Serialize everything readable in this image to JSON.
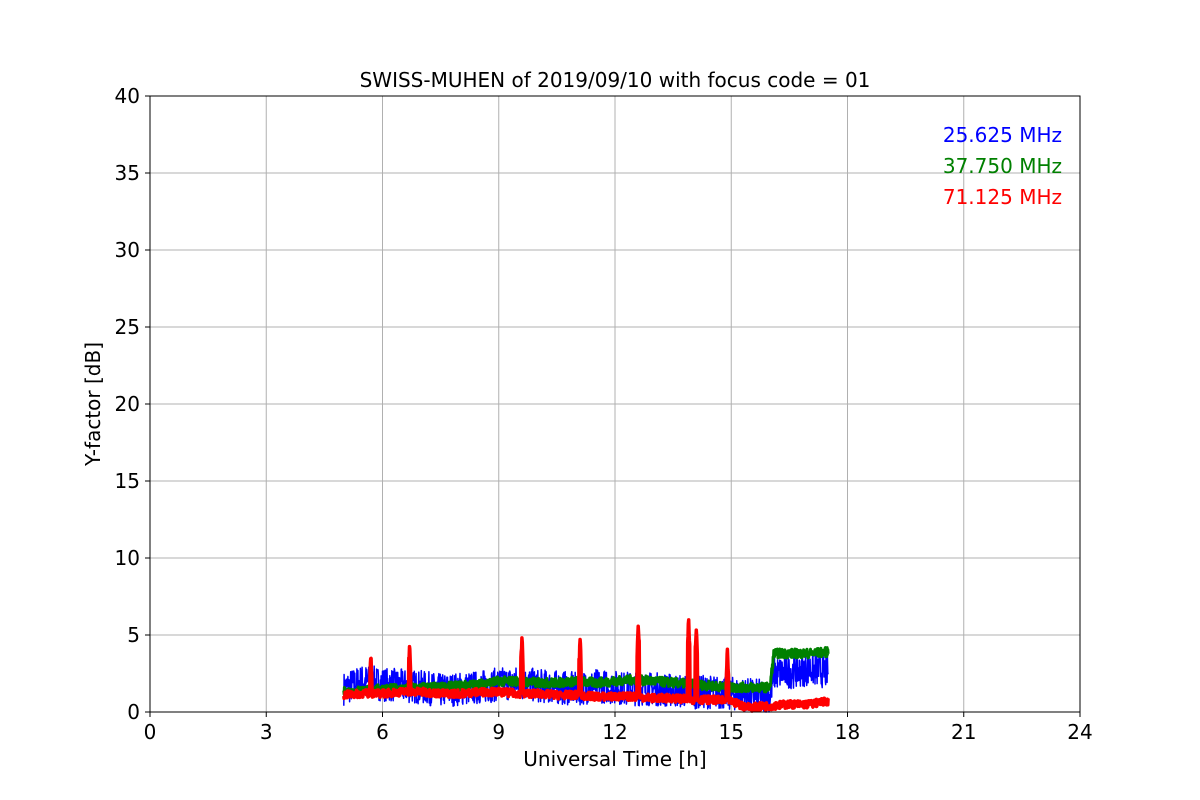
{
  "chart_data": {
    "type": "line",
    "title": "SWISS-MUHEN of 2019/09/10 with focus code = 01",
    "xlabel": "Universal Time [h]",
    "ylabel": "Y-factor [dB]",
    "xlim": [
      0,
      24
    ],
    "ylim": [
      0,
      40
    ],
    "xticks": [
      "0",
      "3",
      "6",
      "9",
      "12",
      "15",
      "18",
      "21",
      "24"
    ],
    "yticks": [
      "0",
      "5",
      "10",
      "15",
      "20",
      "25",
      "30",
      "35",
      "40"
    ],
    "grid": true,
    "legend_position": "top-right",
    "series": [
      {
        "name": "25.625 MHz",
        "color": "#0000ff",
        "x": [
          5.0,
          5.5,
          6.0,
          6.5,
          7.0,
          7.5,
          8.0,
          8.5,
          9.0,
          9.5,
          10.0,
          10.5,
          11.0,
          11.5,
          12.0,
          12.5,
          13.0,
          13.5,
          14.0,
          14.5,
          15.0,
          15.5,
          16.0,
          16.1,
          16.5,
          17.0,
          17.5
        ],
        "y": [
          1.5,
          2.0,
          1.8,
          1.7,
          1.6,
          1.4,
          1.5,
          1.6,
          1.8,
          1.9,
          1.7,
          1.6,
          1.5,
          1.7,
          1.6,
          1.5,
          1.5,
          1.4,
          1.3,
          1.3,
          1.2,
          1.1,
          1.0,
          2.5,
          2.6,
          2.8,
          2.6
        ],
        "spread": 1.1
      },
      {
        "name": "37.750 MHz",
        "color": "#008000",
        "x": [
          5.0,
          5.5,
          6.0,
          6.5,
          7.0,
          7.5,
          8.0,
          8.5,
          9.0,
          9.5,
          10.0,
          10.5,
          11.0,
          11.5,
          12.0,
          12.5,
          13.0,
          13.5,
          14.0,
          14.5,
          15.0,
          15.5,
          16.0,
          16.1,
          16.5,
          17.0,
          17.5
        ],
        "y": [
          1.3,
          1.4,
          1.5,
          1.5,
          1.6,
          1.6,
          1.7,
          1.8,
          2.0,
          2.0,
          1.9,
          1.9,
          2.0,
          1.9,
          2.0,
          2.1,
          2.0,
          1.9,
          1.8,
          1.7,
          1.6,
          1.6,
          1.6,
          3.8,
          3.8,
          3.8,
          3.9
        ],
        "spread": 0.3
      },
      {
        "name": "71.125 MHz",
        "color": "#ff0000",
        "x": [
          5.0,
          5.5,
          6.0,
          6.5,
          7.0,
          7.5,
          8.0,
          8.5,
          9.0,
          9.5,
          10.0,
          10.5,
          11.0,
          11.5,
          12.0,
          12.5,
          13.0,
          13.5,
          14.0,
          14.5,
          15.0,
          15.3,
          15.5,
          16.0,
          16.5,
          17.0,
          17.5
        ],
        "y": [
          1.1,
          1.2,
          1.2,
          1.3,
          1.3,
          1.2,
          1.2,
          1.3,
          1.3,
          1.2,
          1.2,
          1.1,
          1.1,
          1.0,
          1.0,
          1.0,
          0.9,
          0.9,
          0.8,
          0.8,
          0.7,
          0.4,
          0.3,
          0.4,
          0.5,
          0.5,
          0.7
        ],
        "spread": 0.25,
        "spikes": [
          [
            5.7,
            3.7
          ],
          [
            6.7,
            4.4
          ],
          [
            9.6,
            4.9
          ],
          [
            11.1,
            4.8
          ],
          [
            12.6,
            5.7
          ],
          [
            13.9,
            6.1
          ],
          [
            14.1,
            5.4
          ],
          [
            14.9,
            4.2
          ]
        ]
      }
    ]
  }
}
